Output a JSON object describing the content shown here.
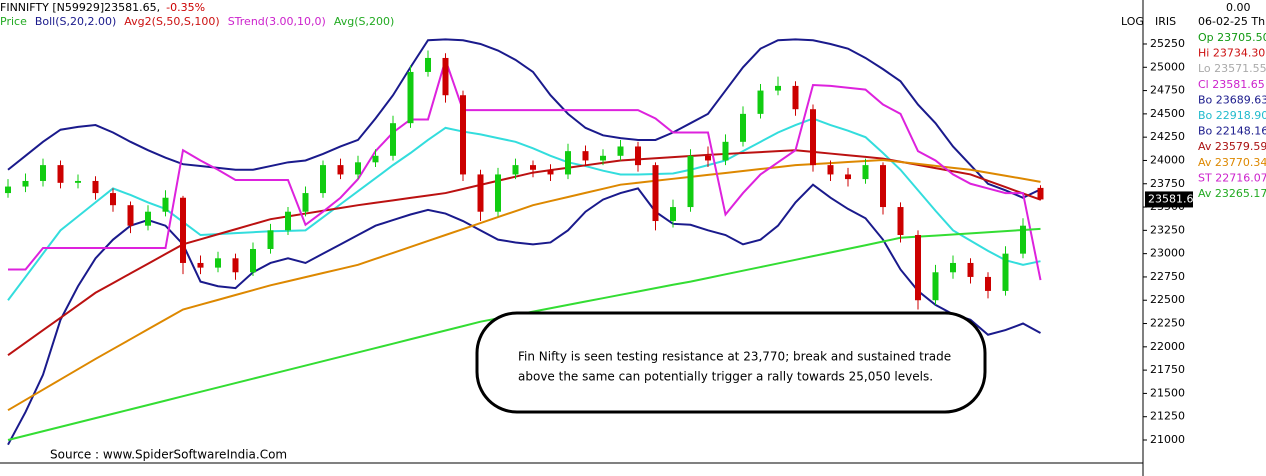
{
  "chart_data": {
    "type": "candlestick",
    "symbol_label": "FINNIFTY [N59929]23581.65,",
    "change_label": "-0.35%",
    "indicator_labels": [
      {
        "text": "Price",
        "color": "#22aa22"
      },
      {
        "text": "Boll(S,20,2.00)",
        "color": "#1a1a8c"
      },
      {
        "text": "Avg2(S,50,S,100)",
        "color": "#cc1111"
      },
      {
        "text": "STrend(3.00,10,0)",
        "color": "#cc22cc"
      },
      {
        "text": "Avg(S,200)",
        "color": "#22aa22"
      }
    ],
    "buttons": [
      "LOG",
      "IRIS"
    ],
    "info_panel": {
      "top_value": "0.00",
      "date": "06-02-25 Th",
      "entries": [
        {
          "text": "Op 23705.50",
          "color": "#119911"
        },
        {
          "text": "Hi 23734.30",
          "color": "#cc1111"
        },
        {
          "text": "Lo 23571.55",
          "color": "#aaaaaa"
        },
        {
          "text": "Cl 23581.65",
          "color": "#cc22cc"
        },
        {
          "text": "Bo 23689.63",
          "color": "#1a1a8c"
        },
        {
          "text": "Bo 22918.90",
          "color": "#22bbcc"
        },
        {
          "text": "Bo 22148.16",
          "color": "#1a1a8c"
        },
        {
          "text": "Av 23579.59",
          "color": "#aa1111"
        },
        {
          "text": "Av 23770.34",
          "color": "#dd8800"
        },
        {
          "text": "ST 22716.07",
          "color": "#cc22cc"
        },
        {
          "text": "Av 23265.17",
          "color": "#22aa22"
        }
      ]
    },
    "last_price": {
      "value": 23581.65,
      "label": "23581.6"
    },
    "up_color": "#11cc11",
    "down_color": "#cc0000",
    "open": [
      23650,
      23720,
      23780,
      23950,
      23760,
      23780,
      23650,
      23520,
      23300,
      23450,
      23600,
      22900,
      22850,
      22950,
      22800,
      23050,
      23250,
      23450,
      23650,
      23950,
      23850,
      23980,
      24050,
      24400,
      24950,
      25100,
      24700,
      23850,
      23450,
      23850,
      23950,
      23900,
      23850,
      24100,
      24000,
      24050,
      24150,
      23950,
      23350,
      23500,
      24050,
      24000,
      24200,
      24500,
      24750,
      24800,
      24550,
      23950,
      23850,
      23800,
      23950,
      23500,
      23200,
      22500,
      22800,
      22900,
      22750,
      22600,
      23000,
      23705.5
    ],
    "high": [
      23800,
      23860,
      24020,
      24000,
      23850,
      23830,
      23700,
      23560,
      23520,
      23680,
      23620,
      22980,
      23020,
      23000,
      23120,
      23320,
      23500,
      23720,
      24000,
      24020,
      24050,
      24120,
      24480,
      25020,
      25180,
      25150,
      24750,
      23900,
      23920,
      24020,
      24000,
      23960,
      24180,
      24160,
      24120,
      24220,
      24200,
      23980,
      23580,
      24120,
      24150,
      24280,
      24580,
      24820,
      24900,
      24850,
      24600,
      24000,
      23920,
      24020,
      23980,
      23550,
      23250,
      22880,
      22980,
      22950,
      22800,
      23080,
      23380,
      23734.3
    ],
    "low": [
      23600,
      23660,
      23720,
      23700,
      23700,
      23580,
      23450,
      23220,
      23250,
      23400,
      22780,
      22780,
      22800,
      22720,
      22760,
      23000,
      23200,
      23400,
      23600,
      23800,
      23800,
      23930,
      24000,
      24350,
      24900,
      24620,
      23780,
      23350,
      23400,
      23800,
      23820,
      23780,
      23800,
      23940,
      23950,
      24000,
      23880,
      23250,
      23280,
      23450,
      23930,
      23950,
      24150,
      24450,
      24700,
      24480,
      23880,
      23780,
      23720,
      23750,
      23420,
      23120,
      22400,
      22450,
      22730,
      22680,
      22520,
      22550,
      22950,
      23571.55
    ],
    "close": [
      23720,
      23780,
      23950,
      23760,
      23780,
      23650,
      23520,
      23300,
      23450,
      23600,
      22900,
      22850,
      22950,
      22800,
      23050,
      23250,
      23450,
      23650,
      23950,
      23850,
      23980,
      24050,
      24400,
      24950,
      25100,
      24700,
      23850,
      23450,
      23850,
      23950,
      23900,
      23850,
      24100,
      24000,
      24050,
      24150,
      23950,
      23350,
      23500,
      24050,
      24000,
      24200,
      24500,
      24750,
      24800,
      24550,
      23950,
      23850,
      23800,
      23950,
      23500,
      23200,
      22500,
      22800,
      22900,
      22750,
      22600,
      23000,
      23300,
      23581.65
    ],
    "overlays": [
      {
        "color": "#1a1a8c",
        "values": [
          23900,
          24050,
          24200,
          24330,
          24360,
          24380,
          24300,
          24200,
          24110,
          24030,
          23960,
          23940,
          23920,
          23900,
          23900,
          23940,
          23980,
          24000,
          24070,
          24150,
          24220,
          24450,
          24700,
          25000,
          25290,
          25300,
          25290,
          25250,
          25180,
          25080,
          24950,
          24700,
          24500,
          24350,
          24270,
          24240,
          24220,
          24220,
          24300,
          24400,
          24500,
          24750,
          25000,
          25200,
          25290,
          25300,
          25290,
          25250,
          25200,
          25100,
          24980,
          24850,
          24600,
          24400,
          24150,
          23950,
          23750,
          23680,
          23600,
          23689.63
        ]
      },
      {
        "color": "#33dddd",
        "values": [
          22500,
          22750,
          23000,
          23250,
          23400,
          23550,
          23700,
          23630,
          23550,
          23480,
          23340,
          23200,
          23210,
          23220,
          23230,
          23240,
          23245,
          23250,
          23390,
          23530,
          23670,
          23810,
          23950,
          24080,
          24220,
          24350,
          24310,
          24280,
          24240,
          24200,
          24130,
          24050,
          23980,
          23940,
          23890,
          23850,
          23850,
          23855,
          23860,
          23900,
          23950,
          24000,
          24100,
          24200,
          24300,
          24380,
          24450,
          24380,
          24320,
          24250,
          24080,
          23900,
          23680,
          23460,
          23250,
          23140,
          23030,
          22930,
          22880,
          22918.9
        ]
      },
      {
        "color": "#1a1a8c",
        "values": [
          20950,
          21300,
          21700,
          22290,
          22650,
          22950,
          23150,
          23300,
          23360,
          23300,
          23100,
          22700,
          22650,
          22630,
          22800,
          22900,
          22950,
          22900,
          23000,
          23100,
          23200,
          23300,
          23360,
          23420,
          23470,
          23430,
          23350,
          23250,
          23150,
          23120,
          23100,
          23120,
          23250,
          23450,
          23580,
          23650,
          23700,
          23450,
          23320,
          23310,
          23250,
          23200,
          23100,
          23150,
          23300,
          23550,
          23740,
          23600,
          23480,
          23380,
          23150,
          22830,
          22600,
          22450,
          22350,
          22290,
          22130,
          22180,
          22250,
          22148.16
        ]
      },
      {
        "color": "#bb1111",
        "values": [
          21910,
          22044,
          22178,
          22312,
          22446,
          22580,
          22684,
          22788,
          22892,
          22996,
          23100,
          23154,
          23208,
          23262,
          23316,
          23370,
          23400,
          23430,
          23460,
          23490,
          23520,
          23546,
          23572,
          23598,
          23624,
          23650,
          23694,
          23738,
          23782,
          23826,
          23870,
          23896,
          23922,
          23948,
          23974,
          24000,
          24012,
          24024,
          24036,
          24048,
          24060,
          24070,
          24080,
          24090,
          24100,
          24110,
          24092,
          24074,
          24056,
          24038,
          24020,
          23986,
          23952,
          23918,
          23884,
          23850,
          23782,
          23714,
          23646,
          23579.59
        ]
      },
      {
        "color": "#dd8800",
        "values": [
          21320,
          21430,
          21540,
          21650,
          21760,
          21870,
          21976,
          22082,
          22188,
          22294,
          22400,
          22452,
          22504,
          22556,
          22608,
          22660,
          22704,
          22748,
          22792,
          22836,
          22880,
          22944,
          23008,
          23072,
          23136,
          23200,
          23264,
          23328,
          23392,
          23456,
          23520,
          23564,
          23608,
          23652,
          23696,
          23740,
          23761,
          23782,
          23803,
          23824,
          23845,
          23866,
          23887,
          23908,
          23929,
          23950,
          23961,
          23972,
          23983,
          23994,
          24005,
          23984,
          23963,
          23942,
          23921,
          23900,
          23868,
          23836,
          23804,
          23770.34
        ]
      },
      {
        "color": "#dd22dd",
        "values": [
          22830,
          22830,
          23060,
          23060,
          23060,
          23060,
          23060,
          23060,
          23060,
          23060,
          24110,
          24000,
          23900,
          23790,
          23790,
          23790,
          23790,
          23310,
          23450,
          23600,
          23800,
          24100,
          24300,
          24440,
          24440,
          25080,
          24540,
          24540,
          24540,
          24540,
          24540,
          24540,
          24540,
          24540,
          24540,
          24540,
          24540,
          24450,
          24300,
          24300,
          24300,
          23420,
          23650,
          23850,
          23980,
          24110,
          24810,
          24800,
          24780,
          24760,
          24600,
          24500,
          24100,
          24000,
          23850,
          23750,
          23700,
          23650,
          23650,
          22716.07
        ]
      },
      {
        "color": "#33dd33",
        "values": [
          21000,
          21047,
          21094,
          21141,
          21188,
          21235,
          21282,
          21329,
          21376,
          21423,
          21470,
          21517,
          21564,
          21611,
          21658,
          21705,
          21752,
          21799,
          21846,
          21893,
          21940,
          21987,
          22034,
          22081,
          22128,
          22175,
          22222,
          22270,
          22306,
          22342,
          22378,
          22414,
          22450,
          22486,
          22522,
          22558,
          22594,
          22630,
          22666,
          22700,
          22739,
          22778,
          22817,
          22856,
          22895,
          22934,
          22973,
          23012,
          23051,
          23090,
          23130,
          23170,
          23182,
          23194,
          23206,
          23218,
          23230,
          23242,
          23254,
          23265.17
        ]
      }
    ],
    "ylim": [
      20764,
      25722
    ],
    "yticks": [
      25250,
      25000,
      24750,
      24500,
      24250,
      24000,
      23750,
      23500,
      23250,
      23000,
      22750,
      22500,
      22250,
      22000,
      21750,
      21500,
      21250,
      21000
    ],
    "annotation": [
      "Fin Nifty is seen testing resistance at 23,770; break and sustained trade",
      "above the same can potentially trigger a rally towards 25,050 levels."
    ],
    "source": "Source : www.SpiderSoftwareIndia.Com"
  }
}
